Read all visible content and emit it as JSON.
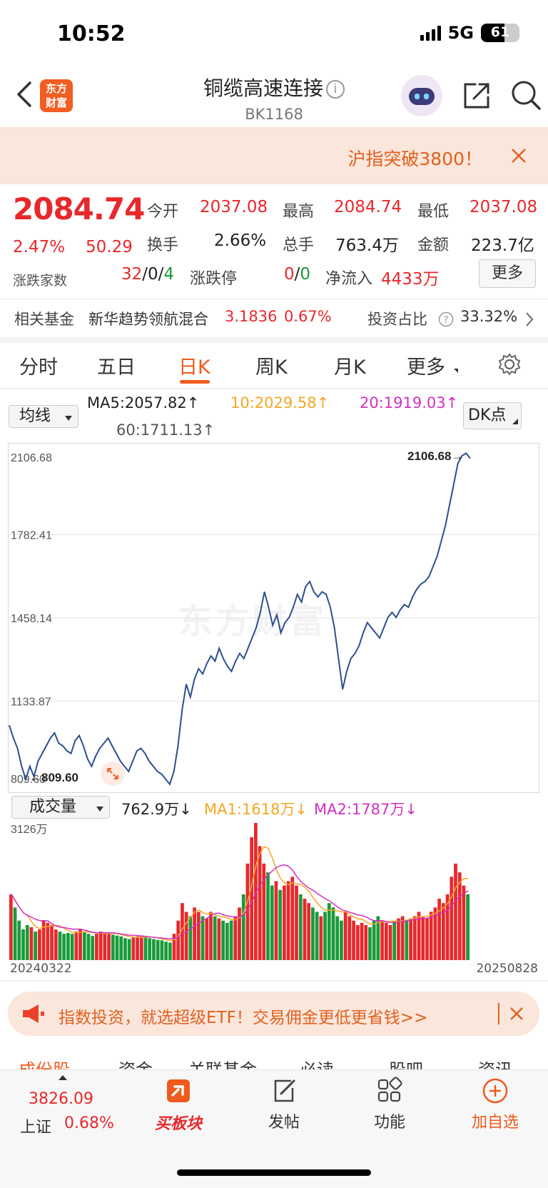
{
  "status": {
    "time": "10:52",
    "network": "5G",
    "battery": "61",
    "battery_level": 0.61
  },
  "header": {
    "title": "铜缆高速连接",
    "info_symbol": "i",
    "code": "BK1168",
    "logo_text": "东方财富"
  },
  "banner": {
    "text": "沪指突破3800！"
  },
  "quote": {
    "price": "2084.74",
    "change_pct": "2.47%",
    "change": "50.29",
    "open_label": "今开",
    "open": "2037.08",
    "high_label": "最高",
    "high": "2084.74",
    "low_label": "最低",
    "low": "2037.08",
    "turnover_label": "换手",
    "turnover": "2.66%",
    "volume_label": "总手",
    "volume": "763.4万",
    "amount_label": "金额",
    "amount": "223.7亿",
    "updown_label": "涨跌家数",
    "up": "32",
    "flat": "0",
    "down": "4",
    "limit_label": "涨跌停",
    "limit_up": "0",
    "limit_down": "0",
    "inflow_label": "净流入",
    "inflow": "4433万",
    "more_label": "更多"
  },
  "fund": {
    "label": "相关基金",
    "name": "新华趋势领航混合",
    "value": "3.1836",
    "pct": "0.67%",
    "ratio_label": "投资占比",
    "ratio": "33.32%"
  },
  "tabs": [
    "分时",
    "五日",
    "日K",
    "周K",
    "月K",
    "更多"
  ],
  "active_tab": "日K",
  "indicators": {
    "ma_select": "均线",
    "ma5": "MA5:2057.82↑",
    "ma10": "10:2029.58↑",
    "ma20": "20:1919.03↑",
    "ma60": "60:1711.13↑",
    "dk_label": "DK点",
    "vol_select": "成交量",
    "vol_value": "762.9万↓",
    "vol_ma1": "MA1:1618万↓",
    "vol_ma2": "MA2:1787万↓"
  },
  "colors": {
    "up": "#e8282b",
    "down": "#1a9a3a",
    "accent": "#f05a1c",
    "line": "#2c4f8e",
    "ma1": "#f5a623",
    "ma2": "#d42fc3"
  },
  "chart_data": {
    "type": "line",
    "y_ticks": [
      "2106.68",
      "1782.41",
      "1458.14",
      "1133.87",
      "809.60"
    ],
    "ylim": [
      809.6,
      2106.68
    ],
    "max_label": "2106.68",
    "min_label": "809.60",
    "x_start": "20240322",
    "x_end": "20250828",
    "values": [
      1040,
      990,
      950,
      880,
      830,
      880,
      840,
      900,
      930,
      960,
      990,
      1010,
      970,
      960,
      940,
      930,
      980,
      1000,
      960,
      910,
      880,
      920,
      950,
      970,
      990,
      960,
      930,
      900,
      880,
      860,
      900,
      940,
      950,
      930,
      900,
      880,
      860,
      850,
      830,
      810,
      860,
      960,
      1100,
      1200,
      1150,
      1220,
      1260,
      1240,
      1280,
      1310,
      1290,
      1340,
      1300,
      1270,
      1250,
      1290,
      1320,
      1300,
      1340,
      1380,
      1420,
      1480,
      1560,
      1500,
      1430,
      1470,
      1400,
      1440,
      1460,
      1500,
      1550,
      1520,
      1580,
      1600,
      1560,
      1540,
      1560,
      1550,
      1500,
      1420,
      1300,
      1180,
      1250,
      1300,
      1320,
      1350,
      1400,
      1440,
      1420,
      1400,
      1380,
      1420,
      1460,
      1480,
      1460,
      1490,
      1510,
      1500,
      1540,
      1570,
      1590,
      1600,
      1620,
      1660,
      1700,
      1760,
      1820,
      1900,
      1980,
      2060,
      2090,
      2100,
      2080
    ],
    "volume_ylim": [
      0,
      3126
    ],
    "volume_top_label": "3126万",
    "volumes": [
      1500,
      1200,
      900,
      700,
      800,
      750,
      650,
      700,
      900,
      850,
      800,
      700,
      650,
      600,
      620,
      600,
      650,
      700,
      650,
      600,
      550,
      600,
      650,
      600,
      620,
      580,
      560,
      540,
      500,
      480,
      520,
      540,
      560,
      520,
      500,
      480,
      460,
      450,
      420,
      400,
      600,
      900,
      1300,
      1100,
      1000,
      1200,
      1100,
      1000,
      950,
      1100,
      1000,
      950,
      900,
      850,
      900,
      1000,
      1200,
      1500,
      2200,
      2800,
      3126,
      2600,
      2200,
      2000,
      1700,
      1800,
      1600,
      1700,
      1800,
      1900,
      1700,
      1500,
      1400,
      1300,
      1200,
      1100,
      1000,
      1100,
      1300,
      1200,
      1000,
      900,
      1100,
      1000,
      900,
      800,
      850,
      800,
      750,
      900,
      1000,
      900,
      850,
      800,
      900,
      950,
      1000,
      900,
      950,
      1000,
      1100,
      1000,
      950,
      1100,
      1200,
      1400,
      1300,
      1500,
      1900,
      2200,
      2000,
      1700,
      1500
    ]
  },
  "ad": {
    "text": "指数投资，就选超级ETF！交易佣金更低更省钱>>"
  },
  "bottom_tabs": [
    "成份股",
    "资金",
    "关联基金",
    "必读",
    "股吧",
    "资讯"
  ],
  "bottom": {
    "index_value": "3826.09",
    "index_name": "上证",
    "index_pct": "0.68%",
    "nav": [
      "买板块",
      "发帖",
      "功能",
      "加自选"
    ]
  }
}
